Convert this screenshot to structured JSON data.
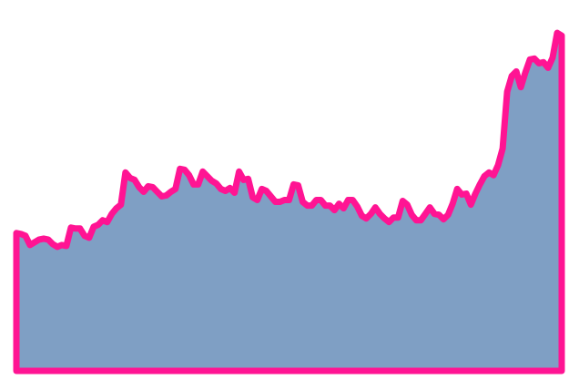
{
  "colors": {
    "background": "#ffffff",
    "area_fill": "#7f9fc4",
    "line": "#ff1493"
  },
  "chart_data": {
    "type": "area",
    "title": "",
    "xlabel": "",
    "ylabel": "",
    "grid": false,
    "legend": "none",
    "ylim": [
      0,
      380
    ],
    "x": [
      0,
      1,
      2,
      3,
      4,
      5,
      6,
      7,
      8,
      9,
      10,
      11,
      12,
      13,
      14,
      15,
      16,
      17,
      18,
      19,
      20,
      21,
      22,
      23,
      24,
      25,
      26,
      27,
      28,
      29,
      30,
      31,
      32,
      33,
      34,
      35,
      36,
      37,
      38,
      39,
      40,
      41,
      42,
      43,
      44,
      45,
      46,
      47,
      48,
      49,
      50,
      51,
      52,
      53,
      54,
      55,
      56,
      57,
      58,
      59,
      60,
      61,
      62,
      63,
      64,
      65,
      66,
      67,
      68,
      69,
      70,
      71,
      72,
      73,
      74,
      75,
      76,
      77,
      78,
      79,
      80,
      81,
      82,
      83,
      84,
      85,
      86,
      87,
      88,
      89,
      90,
      91,
      92,
      93,
      94,
      95,
      96,
      97,
      98,
      99,
      100,
      101,
      102,
      103,
      104,
      105,
      106,
      107,
      108,
      109,
      110,
      111,
      112,
      113,
      114,
      115,
      116,
      117,
      118,
      119,
      120
    ],
    "series": [
      {
        "values": [
          150,
          149,
          147,
          137,
          140,
          143,
          144,
          143,
          138,
          135,
          137,
          136,
          156,
          155,
          155,
          147,
          145,
          157,
          159,
          164,
          162,
          171,
          177,
          181,
          216,
          210,
          208,
          200,
          195,
          201,
          200,
          195,
          190,
          191,
          195,
          198,
          220,
          219,
          213,
          203,
          203,
          217,
          212,
          207,
          204,
          198,
          196,
          199,
          194,
          217,
          208,
          209,
          189,
          186,
          198,
          196,
          190,
          184,
          184,
          186,
          186,
          203,
          202,
          184,
          180,
          180,
          186,
          186,
          180,
          180,
          175,
          182,
          177,
          186,
          186,
          179,
          169,
          166,
          171,
          178,
          171,
          166,
          162,
          167,
          167,
          185,
          181,
          170,
          164,
          164,
          171,
          178,
          171,
          170,
          165,
          170,
          182,
          198,
          192,
          193,
          181,
          193,
          203,
          212,
          216,
          213,
          224,
          242,
          304,
          321,
          326,
          309,
          325,
          339,
          340,
          335,
          336,
          330,
          341,
          368,
          365
        ]
      }
    ]
  }
}
